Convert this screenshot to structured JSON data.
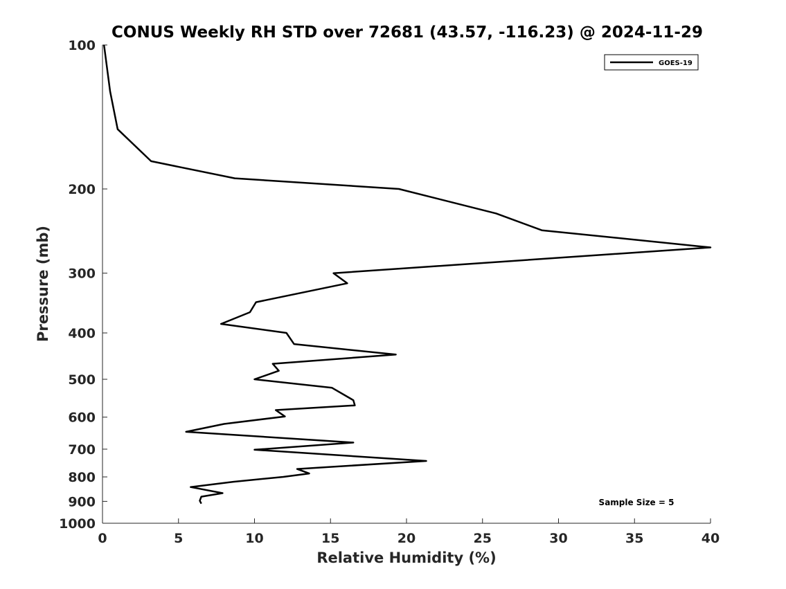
{
  "chart_data": {
    "type": "line",
    "title": "CONUS Weekly RH STD over 72681 (43.57, -116.23) @ 2024-11-29",
    "xlabel": "Relative Humidity (%)",
    "ylabel": "Pressure (mb)",
    "xlim": [
      0,
      40
    ],
    "ylim": [
      100,
      1000
    ],
    "yscale": "log",
    "y_reversed": true,
    "grid": false,
    "legend_position": "top-right",
    "xticks": [
      0,
      5,
      10,
      15,
      20,
      25,
      30,
      35,
      40
    ],
    "yticks": [
      100,
      200,
      300,
      400,
      500,
      600,
      700,
      800,
      900,
      1000
    ],
    "annotation": "Sample Size = 5",
    "series": [
      {
        "name": "GOES-19",
        "color": "#000000",
        "points": [
          [
            0.1,
            100
          ],
          [
            0.5,
            125
          ],
          [
            1.0,
            150
          ],
          [
            3.2,
            175
          ],
          [
            8.7,
            190
          ],
          [
            19.5,
            200
          ],
          [
            25.9,
            225
          ],
          [
            28.9,
            244
          ],
          [
            40.0,
            265
          ],
          [
            15.2,
            300
          ],
          [
            16.1,
            315
          ],
          [
            10.1,
            345
          ],
          [
            9.7,
            362
          ],
          [
            7.8,
            383
          ],
          [
            12.1,
            400
          ],
          [
            12.6,
            422
          ],
          [
            19.3,
            444
          ],
          [
            11.2,
            464
          ],
          [
            11.6,
            480
          ],
          [
            10.0,
            500
          ],
          [
            15.1,
            521
          ],
          [
            16.5,
            553
          ],
          [
            16.6,
            567
          ],
          [
            11.4,
            580
          ],
          [
            12.0,
            598
          ],
          [
            8.0,
            620
          ],
          [
            5.5,
            644
          ],
          [
            16.5,
            678
          ],
          [
            10.0,
            702
          ],
          [
            21.3,
            741
          ],
          [
            12.8,
            770
          ],
          [
            13.6,
            787
          ],
          [
            11.9,
            800
          ],
          [
            8.6,
            819
          ],
          [
            5.8,
            840
          ],
          [
            7.9,
            865
          ],
          [
            6.5,
            880
          ],
          [
            6.4,
            897
          ],
          [
            6.5,
            910
          ]
        ]
      }
    ]
  }
}
